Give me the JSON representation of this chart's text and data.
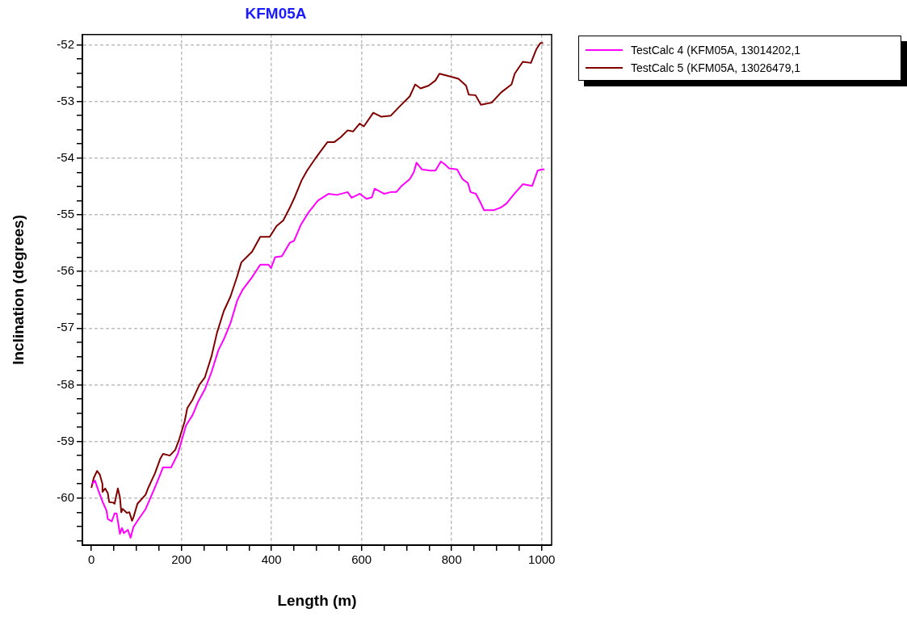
{
  "chart_data": {
    "type": "line",
    "title": "KFM05A",
    "xlabel": "Length (m)",
    "ylabel": "Inclination (degrees)",
    "xlim": [
      -20,
      1022
    ],
    "ylim": [
      -60.83,
      -51.82
    ],
    "xticks": [
      0,
      {
        "value": 50,
        "label": null
      },
      {
        "value": 100,
        "label": null
      },
      {
        "value": 150,
        "label": null
      },
      200,
      {
        "value": 250,
        "label": null
      },
      {
        "value": 300,
        "label": null
      },
      {
        "value": 350,
        "label": null
      },
      400,
      {
        "value": 450,
        "label": null
      },
      {
        "value": 500,
        "label": null
      },
      {
        "value": 550,
        "label": null
      },
      600,
      {
        "value": 650,
        "label": null
      },
      {
        "value": 700,
        "label": null
      },
      {
        "value": 750,
        "label": null
      },
      800,
      {
        "value": 850,
        "label": null
      },
      {
        "value": 900,
        "label": null
      },
      {
        "value": 950,
        "label": null
      },
      1000
    ],
    "yticks": [
      {
        "value": -60.75,
        "label": null
      },
      {
        "value": -60.5,
        "label": null
      },
      {
        "value": -60.25,
        "label": null
      },
      -60,
      {
        "value": -59.75,
        "label": null
      },
      {
        "value": -59.5,
        "label": null
      },
      {
        "value": -59.25,
        "label": null
      },
      -59,
      {
        "value": -58.75,
        "label": null
      },
      {
        "value": -58.5,
        "label": null
      },
      {
        "value": -58.25,
        "label": null
      },
      -58,
      {
        "value": -57.75,
        "label": null
      },
      {
        "value": -57.5,
        "label": null
      },
      {
        "value": -57.25,
        "label": null
      },
      -57,
      {
        "value": -56.75,
        "label": null
      },
      {
        "value": -56.5,
        "label": null
      },
      {
        "value": -56.25,
        "label": null
      },
      -56,
      {
        "value": -55.75,
        "label": null
      },
      {
        "value": -55.5,
        "label": null
      },
      {
        "value": -55.25,
        "label": null
      },
      -55,
      {
        "value": -54.75,
        "label": null
      },
      {
        "value": -54.5,
        "label": null
      },
      {
        "value": -54.25,
        "label": null
      },
      -54,
      {
        "value": -53.75,
        "label": null
      },
      {
        "value": -53.5,
        "label": null
      },
      {
        "value": -53.25,
        "label": null
      },
      -53,
      {
        "value": -52.75,
        "label": null
      },
      {
        "value": -52.5,
        "label": null
      },
      {
        "value": -52.25,
        "label": null
      },
      -52
    ],
    "grid": true,
    "legend": "top right",
    "marker": "none",
    "line_style": "solid",
    "series": [
      {
        "name": "TestCalc 4 (KFM05A, 13014202,1",
        "color": "#ff00ff",
        "x": [
          2,
          8,
          15.6,
          24.6,
          33.6,
          36.4,
          45.4,
          51.5,
          56,
          63.4,
          68,
          72,
          81,
          87,
          93.4,
          105,
          120,
          138,
          147,
          159,
          177,
          192,
          210,
          225,
          237,
          252,
          267,
          282,
          294,
          309,
          324,
          336,
          357,
          375,
          393,
          399,
          408,
          423,
          441,
          450,
          465,
          482,
          503,
          527,
          545,
          569,
          578,
          596,
          611,
          623,
          629,
          650,
          665,
          677,
          689,
          707,
          716,
          722,
          734,
          752,
          764,
          776,
          785,
          794,
          812,
          824,
          836,
          842,
          854,
          863,
          872,
          893,
          910,
          922,
          937,
          958,
          979,
          991,
          1000,
          1006
        ],
        "values": [
          -59.75,
          -59.69,
          -59.87,
          -60.06,
          -60.22,
          -60.37,
          -60.41,
          -60.27,
          -60.27,
          -60.63,
          -60.53,
          -60.62,
          -60.56,
          -60.7,
          -60.51,
          -60.37,
          -60.2,
          -59.87,
          -59.7,
          -59.46,
          -59.46,
          -59.22,
          -58.72,
          -58.53,
          -58.3,
          -58.08,
          -57.77,
          -57.39,
          -57.2,
          -56.91,
          -56.51,
          -56.32,
          -56.1,
          -55.88,
          -55.88,
          -55.94,
          -55.75,
          -55.73,
          -55.49,
          -55.46,
          -55.18,
          -54.96,
          -54.75,
          -54.63,
          -54.65,
          -54.6,
          -54.7,
          -54.63,
          -54.72,
          -54.69,
          -54.54,
          -54.63,
          -54.6,
          -54.6,
          -54.49,
          -54.37,
          -54.25,
          -54.08,
          -54.2,
          -54.22,
          -54.22,
          -54.06,
          -54.11,
          -54.18,
          -54.2,
          -54.37,
          -54.44,
          -54.6,
          -54.63,
          -54.77,
          -54.92,
          -54.92,
          -54.87,
          -54.8,
          -54.65,
          -54.46,
          -54.49,
          -54.22,
          -54.2,
          -54.2
        ]
      },
      {
        "name": "TestCalc 5 (KFM05A, 13026479,1",
        "color": "#800000",
        "x": [
          0,
          5,
          12.6,
          18.5,
          24.6,
          24.6,
          30.5,
          36.4,
          39.5,
          48.5,
          51.5,
          58.7,
          63.4,
          66.4,
          69.5,
          78.5,
          84.4,
          90.3,
          93.4,
          102.3,
          120.3,
          126.2,
          141.3,
          153.2,
          159.2,
          174.1,
          186.2,
          195.1,
          207,
          213,
          225,
          240,
          252,
          267,
          279,
          294,
          309,
          324,
          333,
          357,
          375,
          396,
          411,
          426,
          441,
          452,
          467,
          479,
          497,
          524,
          539,
          554,
          569,
          581,
          596,
          605,
          626,
          644,
          665,
          683,
          707,
          719,
          731,
          749,
          764,
          773,
          797,
          815,
          832,
          838,
          853,
          865,
          889,
          910,
          933,
          940,
          958,
          976,
          988,
          997,
          1003
        ],
        "values": [
          -59.82,
          -59.65,
          -59.52,
          -59.58,
          -59.75,
          -59.89,
          -59.83,
          -59.91,
          -60.07,
          -60.08,
          -60.1,
          -59.83,
          -59.99,
          -60.25,
          -60.19,
          -60.26,
          -60.25,
          -60.4,
          -60.34,
          -60.1,
          -59.94,
          -59.82,
          -59.56,
          -59.3,
          -59.22,
          -59.25,
          -59.15,
          -58.96,
          -58.65,
          -58.41,
          -58.26,
          -58,
          -57.87,
          -57.49,
          -57.08,
          -56.7,
          -56.44,
          -56.08,
          -55.84,
          -55.65,
          -55.39,
          -55.39,
          -55.2,
          -55.1,
          -54.87,
          -54.68,
          -54.39,
          -54.22,
          -54.01,
          -53.72,
          -53.72,
          -53.63,
          -53.51,
          -53.53,
          -53.39,
          -53.44,
          -53.2,
          -53.27,
          -53.25,
          -53.1,
          -52.91,
          -52.7,
          -52.77,
          -52.72,
          -52.63,
          -52.51,
          -52.56,
          -52.6,
          -52.72,
          -52.88,
          -52.89,
          -53.06,
          -53.02,
          -52.84,
          -52.7,
          -52.51,
          -52.3,
          -52.32,
          -52.08,
          -51.97,
          -51.97
        ]
      }
    ]
  }
}
